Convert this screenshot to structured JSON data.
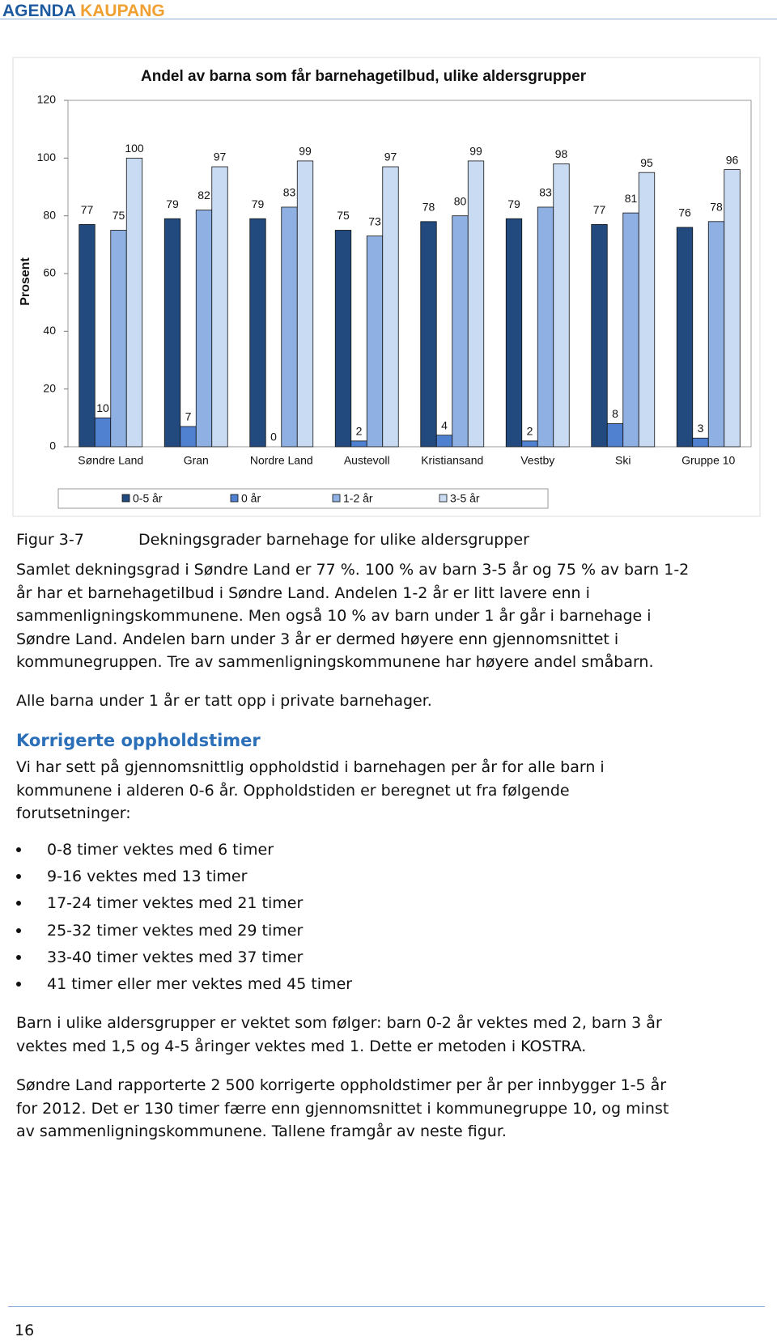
{
  "header": {
    "logo_left": "AGENDA",
    "logo_right": "KAUPANG"
  },
  "chart_data": {
    "type": "bar",
    "title": "Andel av barna som får barnehagetilbud, ulike aldersgrupper",
    "ylabel": "Prosent",
    "categories": [
      "Søndre Land",
      "Gran",
      "Nordre Land",
      "Austevoll",
      "Kristiansand",
      "Vestby",
      "Ski",
      "Gruppe 10"
    ],
    "series": [
      {
        "name": "0-5 år",
        "color": "#234a7e",
        "values": [
          77,
          79,
          79,
          75,
          78,
          79,
          77,
          76
        ]
      },
      {
        "name": "0 år",
        "color": "#4f81d0",
        "values": [
          10,
          7,
          0,
          2,
          4,
          2,
          8,
          3
        ]
      },
      {
        "name": "1-2 år",
        "color": "#8fb0e2",
        "values": [
          75,
          82,
          83,
          73,
          80,
          83,
          81,
          78
        ]
      },
      {
        "name": "3-5 år",
        "color": "#c9daf3",
        "values": [
          100,
          97,
          99,
          97,
          99,
          98,
          95,
          96
        ]
      }
    ],
    "ylim": [
      0,
      120
    ],
    "yticks": [
      0,
      20,
      40,
      60,
      80,
      100,
      120
    ],
    "grid": false,
    "legend": "bottom"
  },
  "figure_caption": {
    "label": "Figur 3-7",
    "text": "Dekningsgrader barnehage for ulike aldersgrupper"
  },
  "paragraph_1": [
    "Samlet dekningsgrad i Søndre Land er 77 %. 100 % av barn 3-5 år og 75 % av barn 1-2",
    "år har et barnehagetilbud i Søndre Land. Andelen 1-2 år er litt lavere enn i",
    "sammenligningskommunene. Men også 10 % av barn under 1 år går i barnehage i",
    "Søndre Land. Andelen barn under 3 år er dermed høyere enn gjennomsnittet i",
    "kommunegruppen. Tre av sammenligningskommunene har høyere andel småbarn."
  ],
  "paragraph_2": [
    "Alle barna under 1 år er tatt opp i private barnehager."
  ],
  "heading": "Korrigerte oppholdstimer",
  "paragraph_3": [
    "Vi har sett på gjennomsnittlig oppholdstid i barnehagen per år for alle barn i",
    "kommunene i alderen 0-6 år. Oppholdstiden er beregnet ut fra følgende",
    "forutsetninger:"
  ],
  "bullets": [
    "0-8 timer vektes med 6 timer",
    "9-16 vektes med 13 timer",
    "17-24 timer vektes med 21 timer",
    "25-32 timer vektes med 29 timer",
    "33-40 timer vektes med 37 timer",
    "41 timer eller mer vektes med 45 timer"
  ],
  "paragraph_4": [
    "Barn i ulike aldersgrupper er vektet som følger: barn 0-2 år vektes med 2, barn 3 år",
    "vektes med 1,5 og 4-5 åringer vektes med 1. Dette er metoden i KOSTRA."
  ],
  "paragraph_5": [
    "Søndre Land rapporterte 2 500 korrigerte oppholdstimer per år per innbygger 1-5 år",
    "for 2012. Det er 130 timer færre enn gjennomsnittet i kommunegruppe 10, og minst",
    "av sammenligningskommunene. Tallene framgår av neste figur."
  ],
  "footer": {
    "page_number": "16"
  }
}
